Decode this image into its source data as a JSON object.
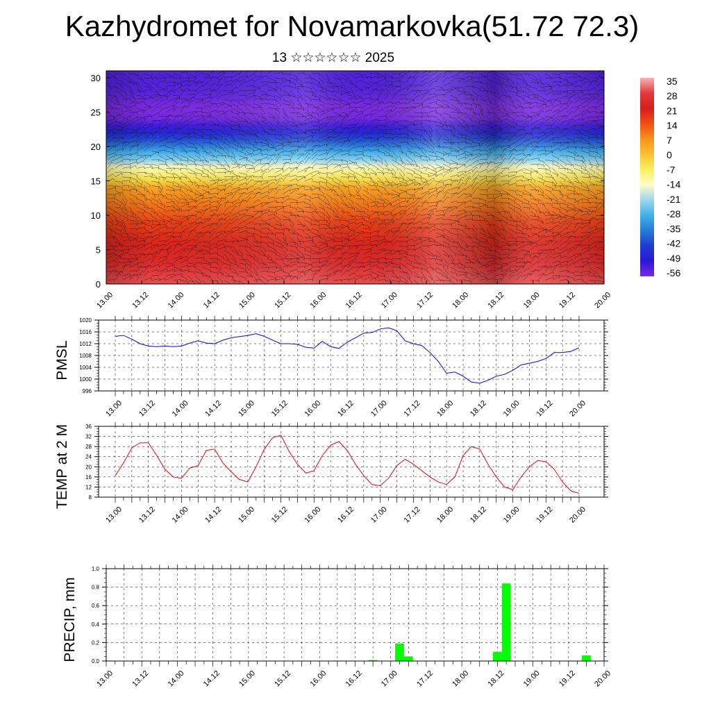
{
  "header": {
    "title": "Kazhydromet for Novamarkovka(51.72 72.3)",
    "subtitle": "13 ☆☆☆☆☆☆ 2025"
  },
  "time_ticks": [
    "13.00",
    "13.12",
    "14.00",
    "14.12",
    "15.00",
    "15.12",
    "16.00",
    "16.12",
    "17.00",
    "17.12",
    "18.00",
    "18.12",
    "19.00",
    "19.12",
    "20.00"
  ],
  "chart_data": [
    {
      "type": "heatmap",
      "title": "",
      "xlabel": "",
      "ylabel": "",
      "x_ticks": [
        "13.00",
        "13.12",
        "14.00",
        "14.12",
        "15.00",
        "15.12",
        "16.00",
        "16.12",
        "17.00",
        "17.12",
        "18.00",
        "18.12",
        "19.00",
        "19.12",
        "20.00"
      ],
      "y_ticks": [
        0,
        5,
        10,
        15,
        20,
        25,
        30
      ],
      "ylim": [
        0,
        31
      ],
      "colorbar": {
        "labels": [
          "35",
          "28",
          "21",
          "14",
          "7",
          "0",
          "-7",
          "-14",
          "-21",
          "-28",
          "-35",
          "-42",
          "-49",
          "-56"
        ],
        "colors": [
          "#f7b3b3",
          "#e33a3a",
          "#d51f1f",
          "#ef4f14",
          "#f7931a",
          "#f9c233",
          "#fbf05b",
          "#fffcc9",
          "#9ed7ef",
          "#3fb2ea",
          "#2a7ad6",
          "#1f3dd0",
          "#2a18d8",
          "#7a2be0"
        ]
      },
      "profile_z": [
        0,
        3,
        6,
        9,
        12,
        14,
        15,
        16,
        17,
        18,
        19,
        20,
        21,
        22,
        23,
        24,
        25,
        26,
        27,
        28,
        29,
        31
      ],
      "profile_t": [
        31,
        26,
        22,
        18,
        11,
        6,
        -2,
        -8,
        -12,
        -20,
        -26,
        -33,
        -40,
        -47,
        -52,
        -57,
        -59,
        -58,
        -56,
        -55,
        -54,
        -54
      ]
    },
    {
      "type": "line",
      "ylabel": "PMSL",
      "yticks": [
        996,
        1000,
        1004,
        1008,
        1012,
        1016,
        1020
      ],
      "ylim": [
        996,
        1020
      ],
      "color": "#0000ff",
      "x": [
        0,
        3,
        6,
        9,
        12,
        15,
        18,
        21,
        24,
        27,
        30,
        33,
        36,
        39,
        42,
        45,
        48,
        51,
        54,
        57,
        60,
        63,
        66,
        69,
        72,
        75,
        78,
        81,
        84,
        87,
        90,
        93,
        96,
        99,
        102,
        105,
        108,
        111,
        114,
        117,
        120,
        123,
        126,
        129,
        132,
        135,
        138,
        141,
        144,
        147,
        150,
        153,
        156,
        159,
        162,
        165,
        168
      ],
      "values": [
        1014.5,
        1014.8,
        1013.5,
        1012,
        1011.2,
        1011,
        1011.2,
        1011,
        1011.2,
        1012.2,
        1013,
        1012.2,
        1012,
        1013.2,
        1014,
        1014.4,
        1014.8,
        1015.4,
        1014.5,
        1013.2,
        1012,
        1012,
        1011.8,
        1010.8,
        1010.5,
        1012.8,
        1011,
        1010.4,
        1012.5,
        1014,
        1015.6,
        1015.8,
        1017,
        1017.4,
        1016.4,
        1013,
        1012,
        1011.4,
        1009,
        1006,
        1002,
        1002.4,
        1001,
        999,
        998.6,
        999.6,
        1001,
        1001.6,
        1003,
        1004.8,
        1005.4,
        1006,
        1007,
        1009,
        1009,
        1009.4,
        1010.6
      ]
    },
    {
      "type": "line",
      "ylabel": "TEMP at 2 M",
      "yticks": [
        8,
        12,
        16,
        20,
        24,
        28,
        32,
        36
      ],
      "ylim": [
        8,
        36
      ],
      "color": "#ff0000",
      "x": [
        0,
        3,
        6,
        9,
        12,
        15,
        18,
        21,
        24,
        27,
        30,
        33,
        36,
        39,
        42,
        45,
        48,
        51,
        54,
        57,
        60,
        63,
        66,
        69,
        72,
        75,
        78,
        81,
        84,
        87,
        90,
        93,
        96,
        99,
        102,
        105,
        108,
        111,
        114,
        117,
        120,
        123,
        126,
        129,
        132,
        135,
        138,
        141,
        144,
        147,
        150,
        153,
        156,
        159,
        162,
        165,
        168
      ],
      "values": [
        16.5,
        21.5,
        27.5,
        29.5,
        29.5,
        24.5,
        19,
        16,
        15.5,
        19.5,
        20.5,
        26.5,
        27,
        21.5,
        18,
        15,
        14,
        20,
        27,
        31.5,
        32.5,
        26,
        21,
        17.5,
        18.5,
        24.5,
        28.5,
        30,
        26.5,
        21,
        16.5,
        13,
        12.5,
        15.5,
        20.5,
        23,
        21,
        18.5,
        16,
        14,
        13,
        16,
        24.5,
        28,
        27,
        21,
        16,
        12,
        11,
        16,
        20,
        22.5,
        22,
        19,
        14,
        10.5,
        9.5
      ]
    },
    {
      "type": "bar",
      "ylabel": "PRECIP, mm",
      "yticks": [
        "0.0",
        "0.2",
        "0.4",
        "0.6",
        "0.8",
        "1.0"
      ],
      "ylim": [
        0,
        1.0
      ],
      "color": "#00ff00",
      "bar_width_hours": 3,
      "x": [
        90,
        99,
        102,
        132,
        135,
        162
      ],
      "values": [
        0.01,
        0.19,
        0.05,
        0.1,
        0.84,
        0.06
      ]
    }
  ]
}
